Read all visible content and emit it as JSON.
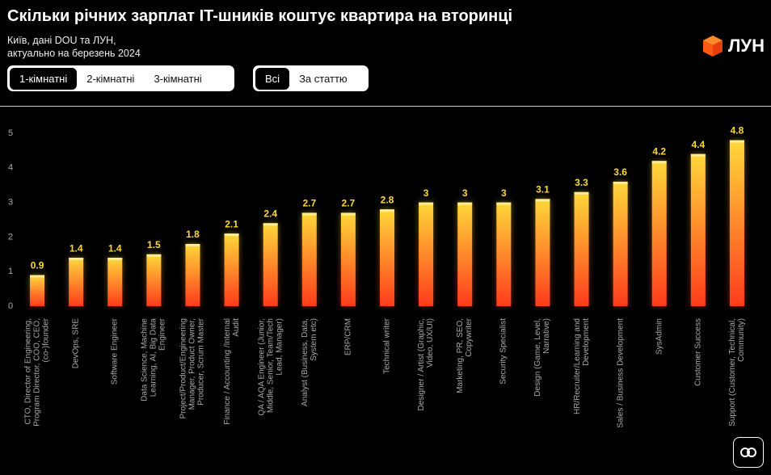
{
  "header": {
    "title": "Скільки річних зарплат IT-шників коштує квартира на вторинці",
    "subtitle": [
      "Київ, дані DOU та ЛУН,",
      "актуально на березень 2024"
    ],
    "logo": "ЛУН"
  },
  "filters": {
    "rooms": [
      "1-кімнатні",
      "2-кімнатні",
      "3-кімнатні"
    ],
    "split": [
      "Всі",
      "За статтю"
    ]
  },
  "chart_data": {
    "type": "bar",
    "categories": [
      "CTO, Director of Engineering, Program Director, COO, CEO, (co-)founder",
      "DevOps, SRE",
      "Software Engineer",
      "Data Science, Machine Learning, AI, Big Data Engineer",
      "Project/Product/Engineering Manager, Product Owner, Producer, Scrum Master",
      "Finance / Accounting /Internal Audit",
      "QA / AQA Engineer (Junior, Middle, Senior, Team/Tech Lead, Manager)",
      "Analyst (Business, Data, System etc)",
      "ERP/CRM",
      "Technical writer",
      "Designer / Artist (Graphic, Video, UX/UI)",
      "Marketing, PR, SEO, Copywriter",
      "Security Specialist",
      "Design (Game, Level, Narrative)",
      "HR/Recruiter/Learning and Development",
      "Sales / Business Development",
      "SysAdmin",
      "Customer Success",
      "Support (Customer, Technical, Community)"
    ],
    "values": [
      0.9,
      1.4,
      1.4,
      1.5,
      1.8,
      2.1,
      2.4,
      2.7,
      2.7,
      2.8,
      3,
      3,
      3,
      3.1,
      3.3,
      3.6,
      4.2,
      4.4,
      4.8
    ],
    "color": [
      "#ffd83a",
      "#ff3b1c"
    ],
    "ylim": [
      0,
      5
    ],
    "yticks": [
      0,
      1,
      2,
      3,
      4,
      5
    ],
    "grid": false
  }
}
